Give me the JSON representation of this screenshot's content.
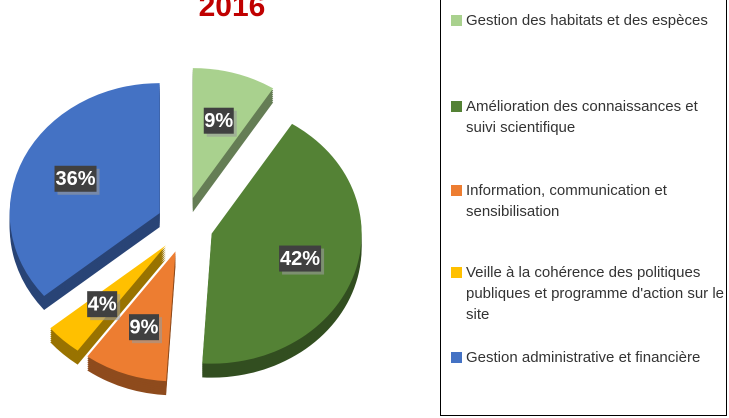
{
  "chart_data": {
    "type": "pie",
    "title": "2016",
    "categories": [
      "Gestion des habitats et des espèces",
      "Amélioration des connaissances et suivi scientifique",
      "Information, communication et sensibilisation",
      "Veille à la cohérence des politiques publiques et programme d'action sur le site",
      "Gestion administrative et financière"
    ],
    "values": [
      9,
      42,
      9,
      4,
      36
    ],
    "value_labels": [
      "9%",
      "42%",
      "9%",
      "4%",
      "36%"
    ],
    "colors": [
      "#a9d18e",
      "#548235",
      "#ed7d31",
      "#ffc000",
      "#4472c4"
    ]
  }
}
